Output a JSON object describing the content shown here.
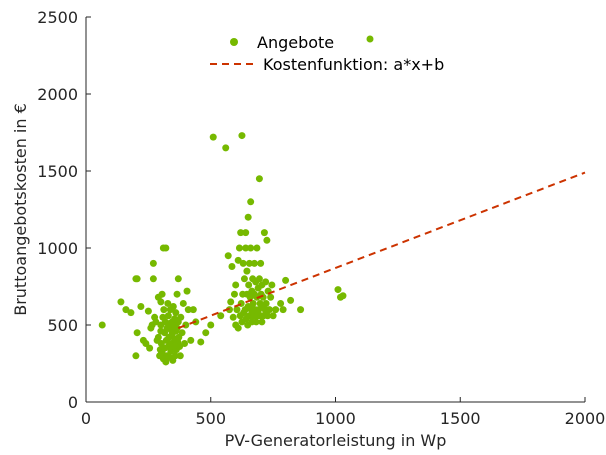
{
  "chart_data": {
    "type": "scatter",
    "xlabel": "PV-Generatorleistung in Wp",
    "ylabel": "Bruttoangebotskosten in €",
    "xlim": [
      0,
      2000
    ],
    "ylim": [
      0,
      2500
    ],
    "x_ticks": [
      0,
      500,
      1000,
      1500,
      2000
    ],
    "y_ticks": [
      0,
      500,
      1000,
      1500,
      2000,
      2500
    ],
    "grid": false,
    "legend_position": "top-center",
    "colors": {
      "points": "#76b900",
      "line": "#cc3300",
      "axis": "#262626"
    },
    "series": [
      {
        "name": "Angebote",
        "kind": "points",
        "points": [
          [
            65,
            500
          ],
          [
            140,
            650
          ],
          [
            160,
            600
          ],
          [
            180,
            580
          ],
          [
            200,
            800
          ],
          [
            205,
            800
          ],
          [
            205,
            450
          ],
          [
            200,
            300
          ],
          [
            220,
            620
          ],
          [
            230,
            400
          ],
          [
            240,
            380
          ],
          [
            250,
            590
          ],
          [
            255,
            350
          ],
          [
            260,
            480
          ],
          [
            265,
            500
          ],
          [
            270,
            800
          ],
          [
            270,
            900
          ],
          [
            275,
            550
          ],
          [
            280,
            520
          ],
          [
            285,
            400
          ],
          [
            290,
            680
          ],
          [
            290,
            420
          ],
          [
            295,
            300
          ],
          [
            298,
            340
          ],
          [
            300,
            650
          ],
          [
            300,
            500
          ],
          [
            300,
            460
          ],
          [
            302,
            380
          ],
          [
            305,
            320
          ],
          [
            305,
            700
          ],
          [
            308,
            550
          ],
          [
            310,
            1000
          ],
          [
            310,
            280
          ],
          [
            312,
            600
          ],
          [
            315,
            450
          ],
          [
            315,
            350
          ],
          [
            318,
            520
          ],
          [
            320,
            1000
          ],
          [
            320,
            260
          ],
          [
            322,
            400
          ],
          [
            325,
            480
          ],
          [
            325,
            300
          ],
          [
            328,
            640
          ],
          [
            330,
            560
          ],
          [
            330,
            360
          ],
          [
            332,
            420
          ],
          [
            335,
            510
          ],
          [
            335,
            290
          ],
          [
            338,
            600
          ],
          [
            340,
            470
          ],
          [
            340,
            330
          ],
          [
            342,
            380
          ],
          [
            345,
            520
          ],
          [
            345,
            440
          ],
          [
            348,
            270
          ],
          [
            350,
            620
          ],
          [
            350,
            500
          ],
          [
            352,
            360
          ],
          [
            355,
            410
          ],
          [
            355,
            540
          ],
          [
            358,
            300
          ],
          [
            360,
            460
          ],
          [
            360,
            580
          ],
          [
            362,
            340
          ],
          [
            365,
            480
          ],
          [
            365,
            700
          ],
          [
            368,
            390
          ],
          [
            370,
            520
          ],
          [
            370,
            800
          ],
          [
            372,
            420
          ],
          [
            375,
            360
          ],
          [
            378,
            300
          ],
          [
            380,
            550
          ],
          [
            385,
            450
          ],
          [
            390,
            640
          ],
          [
            395,
            380
          ],
          [
            400,
            500
          ],
          [
            405,
            720
          ],
          [
            410,
            600
          ],
          [
            420,
            400
          ],
          [
            430,
            600
          ],
          [
            440,
            520
          ],
          [
            460,
            390
          ],
          [
            480,
            450
          ],
          [
            500,
            500
          ],
          [
            510,
            1720
          ],
          [
            540,
            560
          ],
          [
            560,
            1650
          ],
          [
            570,
            950
          ],
          [
            575,
            600
          ],
          [
            580,
            650
          ],
          [
            585,
            880
          ],
          [
            590,
            550
          ],
          [
            595,
            700
          ],
          [
            600,
            500
          ],
          [
            600,
            760
          ],
          [
            605,
            600
          ],
          [
            610,
            920
          ],
          [
            610,
            480
          ],
          [
            615,
            1000
          ],
          [
            618,
            560
          ],
          [
            620,
            1100
          ],
          [
            622,
            640
          ],
          [
            625,
            1730
          ],
          [
            625,
            520
          ],
          [
            628,
            700
          ],
          [
            630,
            900
          ],
          [
            632,
            580
          ],
          [
            635,
            800
          ],
          [
            638,
            600
          ],
          [
            640,
            1100
          ],
          [
            640,
            1000
          ],
          [
            642,
            540
          ],
          [
            645,
            700
          ],
          [
            645,
            850
          ],
          [
            648,
            500
          ],
          [
            650,
            1200
          ],
          [
            650,
            620
          ],
          [
            652,
            760
          ],
          [
            655,
            560
          ],
          [
            655,
            900
          ],
          [
            658,
            680
          ],
          [
            660,
            1300
          ],
          [
            660,
            1000
          ],
          [
            662,
            600
          ],
          [
            665,
            720
          ],
          [
            665,
            520
          ],
          [
            668,
            800
          ],
          [
            670,
            640
          ],
          [
            672,
            560
          ],
          [
            675,
            900
          ],
          [
            675,
            700
          ],
          [
            678,
            600
          ],
          [
            680,
            780
          ],
          [
            682,
            520
          ],
          [
            685,
            680
          ],
          [
            685,
            1000
          ],
          [
            688,
            560
          ],
          [
            690,
            740
          ],
          [
            692,
            600
          ],
          [
            695,
            800
          ],
          [
            695,
            1450
          ],
          [
            698,
            640
          ],
          [
            700,
            560
          ],
          [
            700,
            900
          ],
          [
            702,
            700
          ],
          [
            705,
            520
          ],
          [
            705,
            760
          ],
          [
            708,
            620
          ],
          [
            710,
            680
          ],
          [
            712,
            560
          ],
          [
            715,
            1100
          ],
          [
            718,
            600
          ],
          [
            720,
            780
          ],
          [
            722,
            640
          ],
          [
            725,
            1050
          ],
          [
            728,
            560
          ],
          [
            730,
            720
          ],
          [
            735,
            600
          ],
          [
            740,
            680
          ],
          [
            745,
            760
          ],
          [
            750,
            560
          ],
          [
            760,
            600
          ],
          [
            780,
            640
          ],
          [
            790,
            600
          ],
          [
            800,
            790
          ],
          [
            820,
            660
          ],
          [
            860,
            600
          ],
          [
            1010,
            730
          ],
          [
            1020,
            680
          ],
          [
            1030,
            690
          ]
        ]
      },
      {
        "name": "Kostenfunktion: a*x+b",
        "kind": "line",
        "line_points": [
          [
            370,
            480
          ],
          [
            2000,
            1490
          ]
        ]
      }
    ]
  }
}
